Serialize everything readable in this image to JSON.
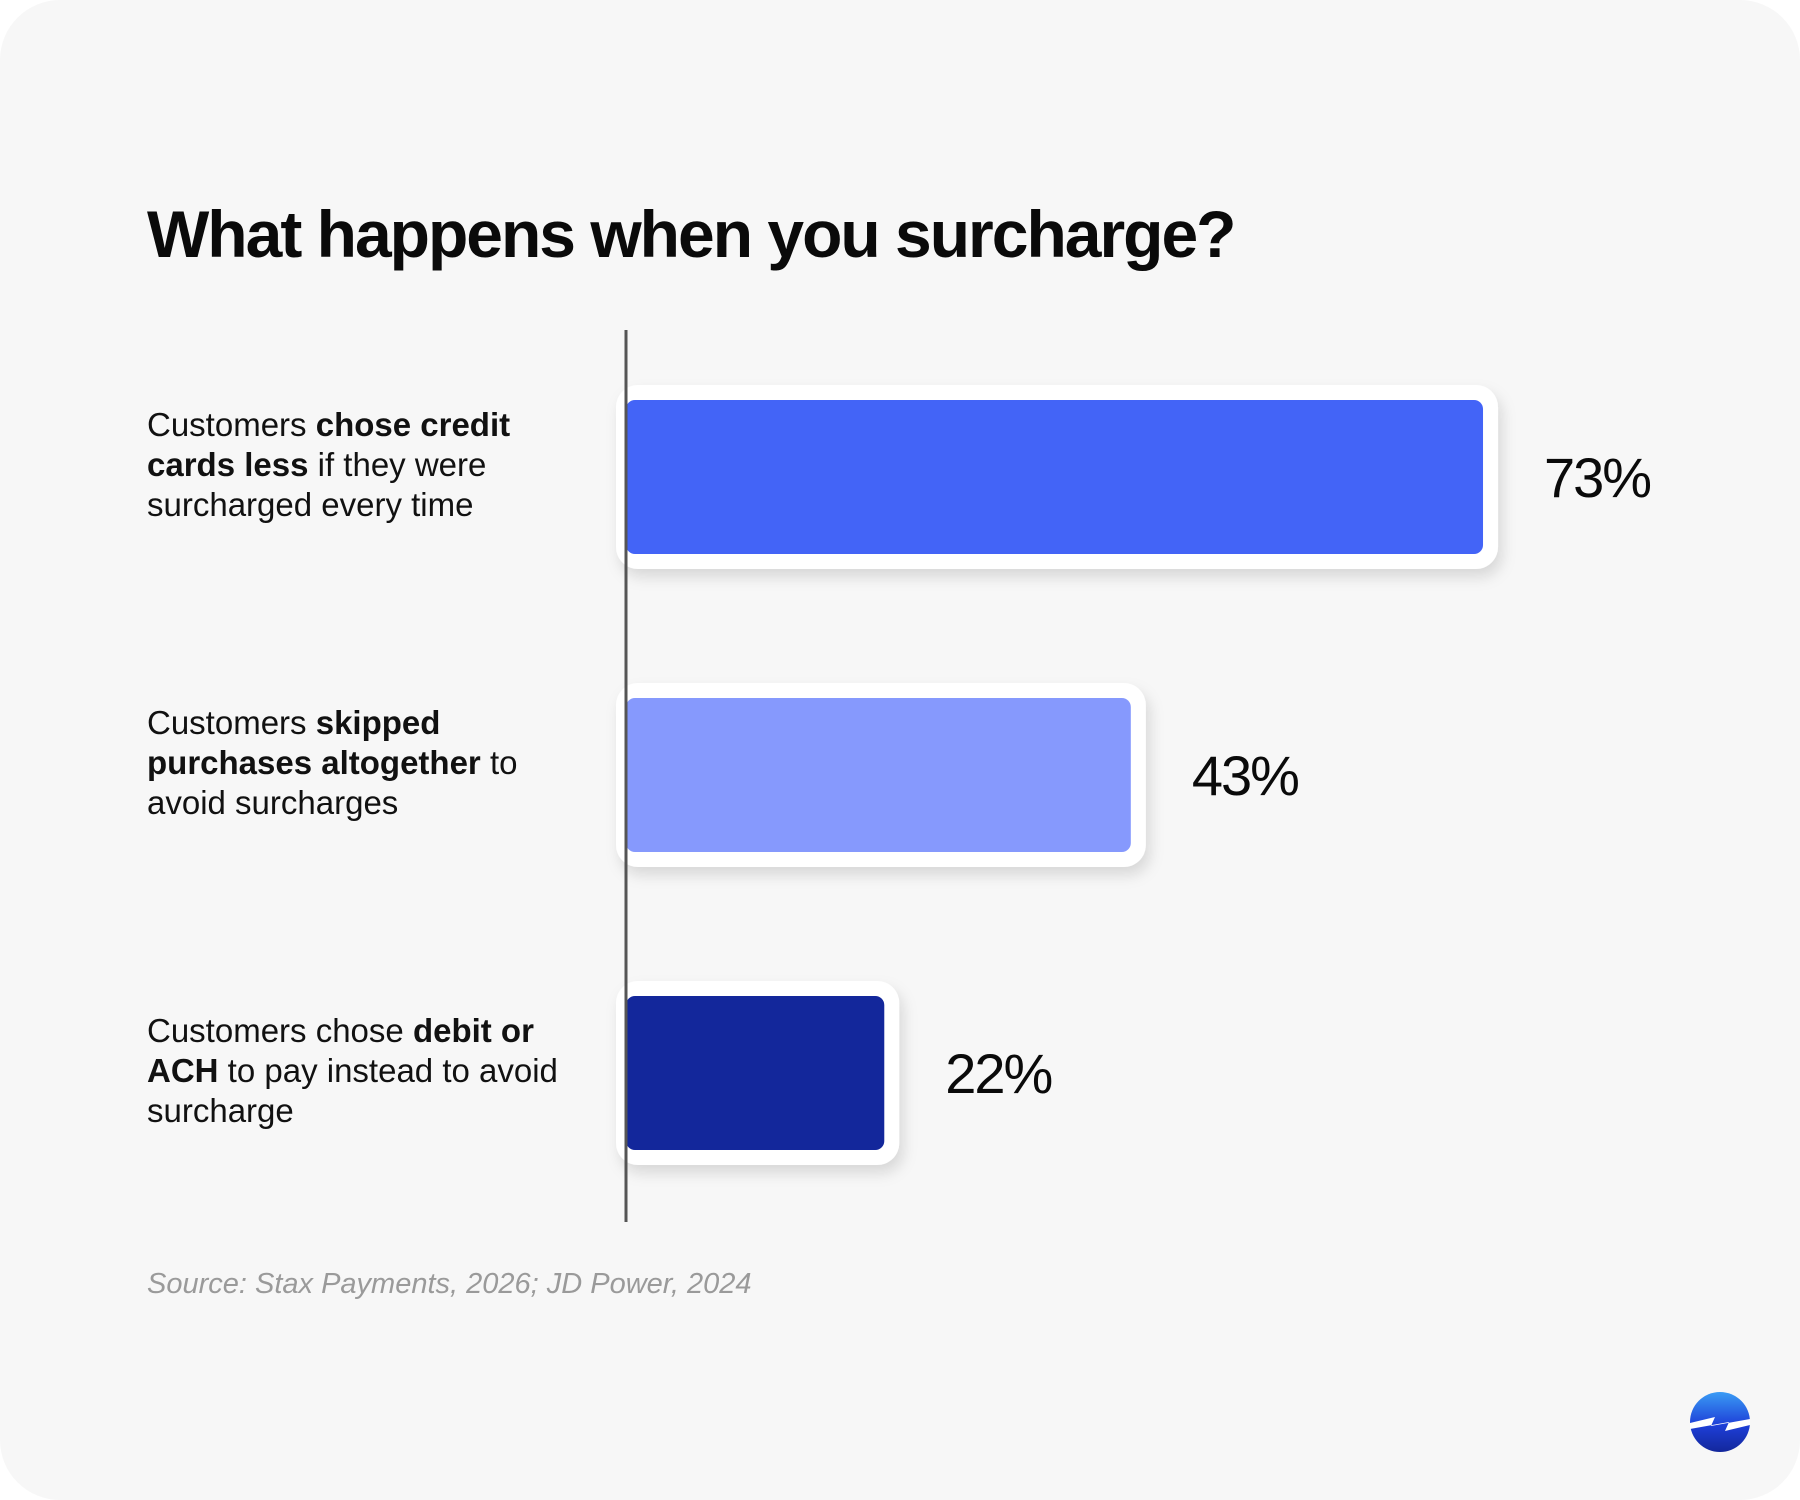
{
  "header": {
    "title": "What happens when you surcharge?"
  },
  "chart_data": {
    "type": "bar",
    "orientation": "horizontal",
    "title": "What happens when you surcharge?",
    "categories": [
      "Customers chose credit cards less if they were surcharged every time",
      "Customers skipped purchases altogether to avoid surcharges",
      "Customers chose debit or ACH to pay instead to avoid surcharge"
    ],
    "category_labels": [
      [
        {
          "text": "Customers ",
          "bold": false
        },
        {
          "text": "chose credit cards less",
          "bold": true
        },
        {
          "text": " if they were surcharged every time",
          "bold": false
        }
      ],
      [
        {
          "text": "Customers ",
          "bold": false
        },
        {
          "text": "skipped purchases altogether",
          "bold": true
        },
        {
          "text": " to avoid surcharges",
          "bold": false
        }
      ],
      [
        {
          "text": "Customers chose ",
          "bold": false
        },
        {
          "text": "debit or ACH",
          "bold": true
        },
        {
          "text": " to pay instead to avoid surcharge",
          "bold": false
        }
      ]
    ],
    "values": [
      73,
      43,
      22
    ],
    "value_labels": [
      "73%",
      "43%",
      "22%"
    ],
    "unit": "%",
    "xlim": [
      0,
      100
    ],
    "colors": [
      "#4364f7",
      "#8699fd",
      "#13279b"
    ],
    "grid": false,
    "legend": "none"
  },
  "footer": {
    "source": "Source: Stax Payments, 2026; JD Power, 2024"
  },
  "logo": {
    "icon": "bolt-circle-icon",
    "colors": [
      "#3a9cf5",
      "#1e3fd8",
      "#13279b"
    ]
  }
}
